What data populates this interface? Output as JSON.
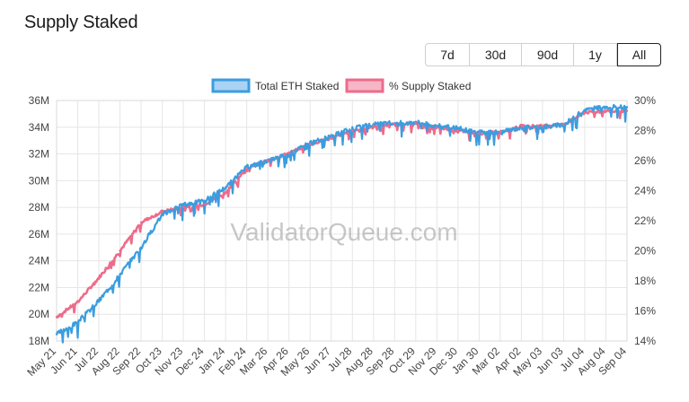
{
  "page": {
    "title": "Supply Staked"
  },
  "range_buttons": [
    {
      "label": "7d",
      "active": false
    },
    {
      "label": "30d",
      "active": false
    },
    {
      "label": "90d",
      "active": false
    },
    {
      "label": "1y",
      "active": false
    },
    {
      "label": "All",
      "active": true
    }
  ],
  "watermark": "ValidatorQueue.com",
  "colors": {
    "eth_line": "#3b9de0",
    "eth_fill": "#a9d2f3",
    "pct_line": "#ee6b8b",
    "pct_fill": "#f6b6c6",
    "grid": "#e6e6e6"
  },
  "chart_data": {
    "type": "line",
    "title": "Supply Staked",
    "legend": [
      "Total ETH Staked",
      "% Supply Staked"
    ],
    "legend_position": "top-center",
    "grid": true,
    "x_labels": [
      "May 21",
      "Jun 21",
      "Jul 22",
      "Aug 22",
      "Sep 22",
      "Oct 23",
      "Nov 23",
      "Dec 24",
      "Jan 24",
      "Feb 24",
      "Mar 26",
      "Apr 26",
      "May 26",
      "Jun 27",
      "Jul 28",
      "Aug 28",
      "Sep 28",
      "Oct 29",
      "Nov 29",
      "Dec 30",
      "Jan 30",
      "Mar 02",
      "Apr 02",
      "May 03",
      "Jun 03",
      "Jul 04",
      "Aug 04",
      "Sep 04"
    ],
    "y_left": {
      "label": "Total ETH Staked",
      "min": 18,
      "max": 36,
      "ticks": [
        18,
        20,
        22,
        24,
        26,
        28,
        30,
        32,
        34,
        36
      ],
      "tick_labels": [
        "18M",
        "20M",
        "22M",
        "24M",
        "26M",
        "28M",
        "30M",
        "32M",
        "34M",
        "36M"
      ]
    },
    "y_right": {
      "label": "% Supply Staked",
      "min": 14,
      "max": 30,
      "ticks": [
        14,
        16,
        18,
        20,
        22,
        24,
        26,
        28,
        30
      ],
      "tick_labels": [
        "14%",
        "16%",
        "18%",
        "20%",
        "22%",
        "24%",
        "26%",
        "28%",
        "30%"
      ]
    },
    "series": [
      {
        "name": "Total ETH Staked",
        "axis": "left",
        "unit": "M ETH",
        "values": [
          18.5,
          19.4,
          21.0,
          23.0,
          25.0,
          27.5,
          28.2,
          28.5,
          29.5,
          31.0,
          31.5,
          32.0,
          32.8,
          33.3,
          33.9,
          34.2,
          34.3,
          34.4,
          34.1,
          33.9,
          33.6,
          33.6,
          34.0,
          34.0,
          34.2,
          35.3,
          35.5,
          35.5
        ]
      },
      {
        "name": "% Supply Staked",
        "axis": "right",
        "unit": "%",
        "values": [
          15.6,
          16.6,
          18.2,
          20.0,
          21.9,
          22.6,
          22.9,
          23.1,
          23.9,
          25.5,
          26.0,
          26.5,
          27.1,
          27.5,
          28.0,
          28.3,
          28.4,
          28.5,
          28.2,
          28.0,
          27.8,
          27.9,
          28.3,
          28.3,
          28.4,
          29.2,
          29.3,
          29.3
        ]
      }
    ]
  }
}
